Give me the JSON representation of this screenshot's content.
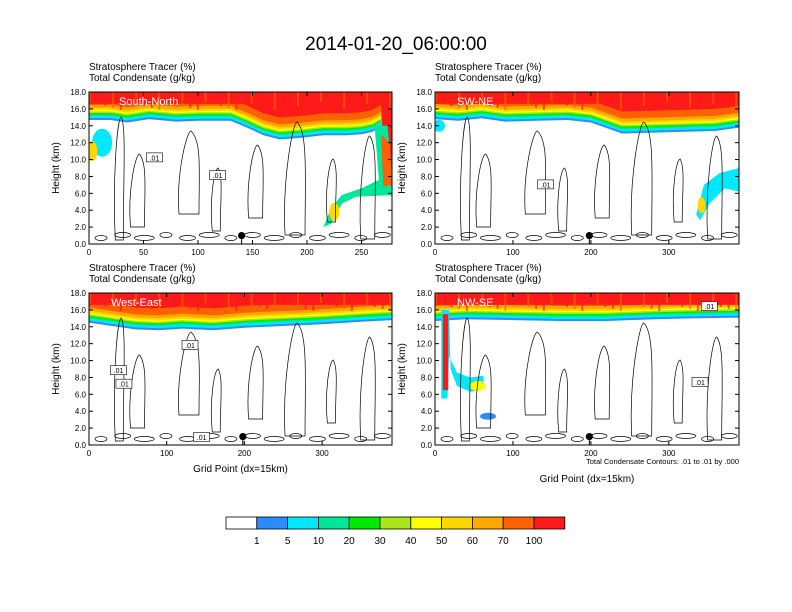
{
  "figure": {
    "title": "2014-01-20_06:00:00"
  },
  "panel_common": {
    "line1": "Stratosphere Tracer   (%)",
    "line2": "Total Condensate   (g/kg)",
    "ylabel": "Height (km)",
    "xlabel": "Grid Point (dx=15km)"
  },
  "footnote": "Total Condensate Contours: .01 to .01 by .000",
  "colorbar": {
    "bins": [
      "#ffffff",
      "#2a8cff",
      "#00e8ff",
      "#00e79a",
      "#00ea00",
      "#a8e61a",
      "#ffff00",
      "#ffd700",
      "#ffa800",
      "#ff6000",
      "#ff1a1a"
    ],
    "labels": [
      "1",
      "5",
      "10",
      "20",
      "30",
      "40",
      "50",
      "60",
      "70",
      "100"
    ]
  },
  "chart_data": [
    {
      "type": "heatmap",
      "name": "South-North",
      "xlim": [
        0,
        278
      ],
      "ylim": [
        0,
        18
      ],
      "xticks": [
        "0",
        "50",
        "100",
        "150",
        "200",
        "250"
      ],
      "yticks": [
        "0.0",
        "2.0",
        "4.0",
        "6.0",
        "8.0",
        "10.0",
        "12.0",
        "14.0",
        "16.0",
        "18.0"
      ],
      "show_xlabel": false,
      "marker": {
        "x": 140,
        "y": 1.0
      },
      "tropopause": [
        [
          0,
          15.4
        ],
        [
          20,
          15.4
        ],
        [
          35,
          15.1
        ],
        [
          55,
          15.5
        ],
        [
          80,
          15.2
        ],
        [
          100,
          15.3
        ],
        [
          130,
          15.3
        ],
        [
          145,
          14.5
        ],
        [
          160,
          13.6
        ],
        [
          175,
          13.1
        ],
        [
          195,
          13.3
        ],
        [
          215,
          13.6
        ],
        [
          235,
          13.6
        ],
        [
          250,
          13.7
        ],
        [
          260,
          14.0
        ],
        [
          268,
          14.6
        ],
        [
          270,
          10.0
        ],
        [
          272,
          6.6
        ],
        [
          278,
          6.4
        ]
      ],
      "contour_labels": [
        {
          "text": ".01",
          "x": 60,
          "y": 10.2
        },
        {
          "text": ".01",
          "x": 118,
          "y": 8.1
        }
      ]
    },
    {
      "type": "heatmap",
      "name": "SW-NE",
      "xlim": [
        0,
        390
      ],
      "ylim": [
        0,
        18
      ],
      "xticks": [
        "0",
        "100",
        "200",
        "300"
      ],
      "yticks": [
        "0.0",
        "2.0",
        "4.0",
        "6.0",
        "8.0",
        "10.0",
        "12.0",
        "14.0",
        "16.0",
        "18.0"
      ],
      "show_xlabel": false,
      "marker": {
        "x": 198,
        "y": 1.0
      },
      "tropopause": [
        [
          0,
          15.5
        ],
        [
          30,
          15.3
        ],
        [
          60,
          15.6
        ],
        [
          90,
          15.2
        ],
        [
          130,
          15.3
        ],
        [
          170,
          15.4
        ],
        [
          200,
          15.1
        ],
        [
          240,
          13.8
        ],
        [
          280,
          13.9
        ],
        [
          320,
          14.0
        ],
        [
          360,
          14.1
        ],
        [
          390,
          14.5
        ]
      ],
      "contour_labels": [
        {
          "text": ".01",
          "x": 142,
          "y": 7.0
        }
      ]
    },
    {
      "type": "heatmap",
      "name": "West-East",
      "xlim": [
        0,
        390
      ],
      "ylim": [
        0,
        18
      ],
      "xticks": [
        "0",
        "100",
        "200",
        "300"
      ],
      "yticks": [
        "0.0",
        "2.0",
        "4.0",
        "6.0",
        "8.0",
        "10.0",
        "12.0",
        "14.0",
        "16.0",
        "18.0"
      ],
      "show_xlabel": true,
      "marker": {
        "x": 198,
        "y": 1.0
      },
      "tropopause": [
        [
          0,
          15.2
        ],
        [
          30,
          14.8
        ],
        [
          60,
          14.4
        ],
        [
          90,
          14.3
        ],
        [
          120,
          14.5
        ],
        [
          160,
          14.3
        ],
        [
          200,
          14.6
        ],
        [
          250,
          14.8
        ],
        [
          300,
          15.0
        ],
        [
          350,
          15.3
        ],
        [
          390,
          15.5
        ]
      ],
      "contour_labels": [
        {
          "text": ".01",
          "x": 130,
          "y": 11.8
        },
        {
          "text": ".01",
          "x": 38,
          "y": 8.8
        },
        {
          "text": ".01",
          "x": 45,
          "y": 7.2
        },
        {
          "text": ".01",
          "x": 145,
          "y": 0.9
        }
      ]
    },
    {
      "type": "heatmap",
      "name": "NW-SE",
      "xlim": [
        0,
        390
      ],
      "ylim": [
        0,
        18
      ],
      "xticks": [
        "0",
        "100",
        "200",
        "300"
      ],
      "yticks": [
        "0.0",
        "2.0",
        "4.0",
        "6.0",
        "8.0",
        "10.0",
        "12.0",
        "14.0",
        "16.0",
        "18.0"
      ],
      "show_xlabel": true,
      "marker": {
        "x": 198,
        "y": 1.0
      },
      "tropopause": [
        [
          0,
          15.4
        ],
        [
          40,
          15.6
        ],
        [
          100,
          15.5
        ],
        [
          160,
          15.4
        ],
        [
          220,
          15.4
        ],
        [
          280,
          15.6
        ],
        [
          330,
          15.7
        ],
        [
          390,
          15.8
        ]
      ],
      "contour_labels": [
        {
          "text": ".01",
          "x": 352,
          "y": 16.4
        },
        {
          "text": ".01",
          "x": 340,
          "y": 7.4
        }
      ]
    }
  ]
}
